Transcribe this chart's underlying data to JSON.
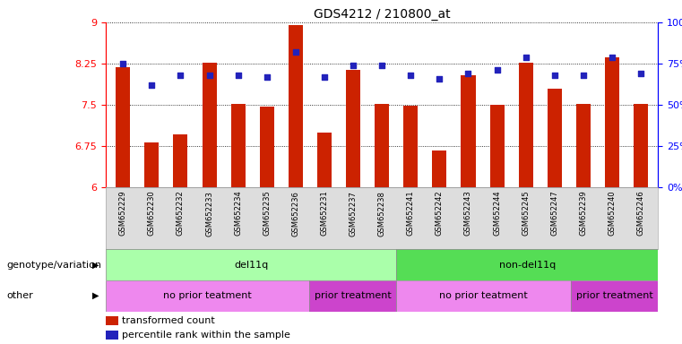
{
  "title": "GDS4212 / 210800_at",
  "samples": [
    "GSM652229",
    "GSM652230",
    "GSM652232",
    "GSM652233",
    "GSM652234",
    "GSM652235",
    "GSM652236",
    "GSM652231",
    "GSM652237",
    "GSM652238",
    "GSM652241",
    "GSM652242",
    "GSM652243",
    "GSM652244",
    "GSM652245",
    "GSM652247",
    "GSM652239",
    "GSM652240",
    "GSM652246"
  ],
  "bar_values": [
    8.19,
    6.82,
    6.97,
    8.27,
    7.52,
    7.47,
    8.95,
    7.0,
    8.13,
    7.52,
    7.48,
    6.68,
    8.04,
    7.5,
    8.27,
    7.8,
    7.52,
    8.37,
    7.52
  ],
  "dot_values": [
    75,
    62,
    68,
    68,
    68,
    67,
    82,
    67,
    74,
    74,
    68,
    66,
    69,
    71,
    79,
    68,
    68,
    79,
    69
  ],
  "ylim_left": [
    6,
    9
  ],
  "ylim_right": [
    0,
    100
  ],
  "yticks_left": [
    6,
    6.75,
    7.5,
    8.25,
    9
  ],
  "yticks_right": [
    0,
    25,
    50,
    75,
    100
  ],
  "ytick_labels_right": [
    "0%",
    "25%",
    "50%",
    "75%",
    "100%"
  ],
  "bar_color": "#cc2200",
  "dot_color": "#2222bb",
  "bar_width": 0.5,
  "genotype_groups": [
    {
      "label": "del11q",
      "start": 0,
      "end": 10,
      "color": "#aaffaa"
    },
    {
      "label": "non-del11q",
      "start": 10,
      "end": 19,
      "color": "#55dd55"
    }
  ],
  "other_groups": [
    {
      "label": "no prior teatment",
      "start": 0,
      "end": 7,
      "color": "#ee88ee"
    },
    {
      "label": "prior treatment",
      "start": 7,
      "end": 10,
      "color": "#cc44cc"
    },
    {
      "label": "no prior teatment",
      "start": 10,
      "end": 16,
      "color": "#ee88ee"
    },
    {
      "label": "prior treatment",
      "start": 16,
      "end": 19,
      "color": "#cc44cc"
    }
  ],
  "legend_items": [
    {
      "label": "transformed count",
      "color": "#cc2200"
    },
    {
      "label": "percentile rank within the sample",
      "color": "#2222bb"
    }
  ],
  "label_genotype": "genotype/variation",
  "label_other": "other"
}
